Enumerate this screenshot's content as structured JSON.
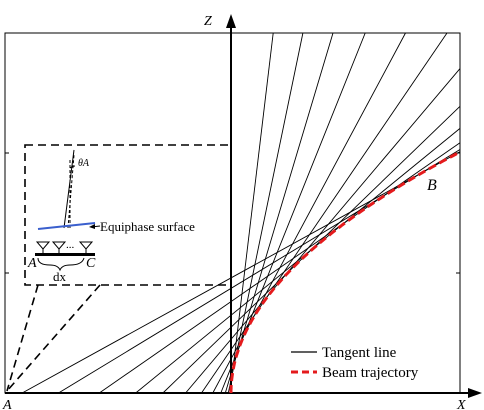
{
  "axes": {
    "x_label": "X",
    "z_label": "Z",
    "origin_label": "A"
  },
  "points": {
    "end_label": "B"
  },
  "inset": {
    "angle_label": "θA",
    "surface_label": "Equiphase surface",
    "left_label": "A",
    "right_label": "C",
    "spacing_label": "dx",
    "dots_label": "..."
  },
  "legend": {
    "items": [
      {
        "label": "Tangent line",
        "style": "solid",
        "color": "#000000"
      },
      {
        "label": "Beam trajectory",
        "style": "dashed",
        "color": "#e41a1c"
      }
    ]
  },
  "colors": {
    "trajectory": "#e41a1c",
    "equiphase": "#3a5fcd",
    "lines": "#000000"
  }
}
